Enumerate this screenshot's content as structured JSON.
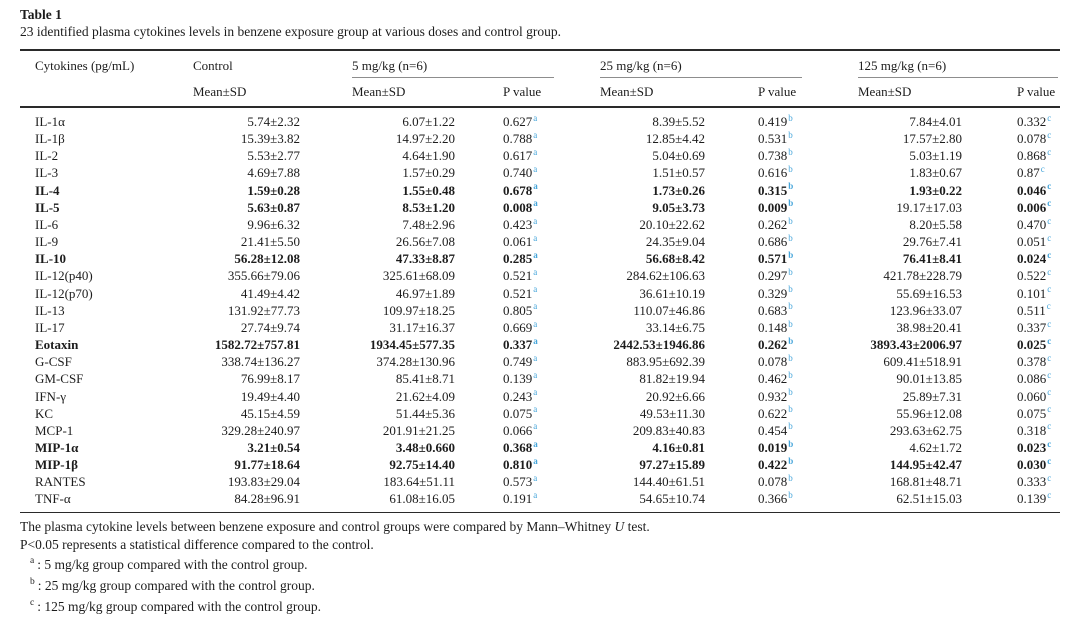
{
  "page": {
    "title": "Table 1",
    "caption": "23 identified plasma cytokines levels in benzene exposure group at various doses and control group."
  },
  "colors": {
    "superscript_blue": "#45a5da",
    "rule_dark": "#2a2a2a",
    "rule_gray": "#8d8d8d"
  },
  "table": {
    "col1_header": "Cytokines (pg/mL)",
    "group_labels": [
      "Control",
      "5 mg/kg (n=6)",
      "25 mg/kg (n=6)",
      "125 mg/kg (n=6)"
    ],
    "mean_sd_label": "Mean±SD",
    "p_value_label": "P value",
    "sup_letters": {
      "p5": "a",
      "p25": "b",
      "p125": "c"
    },
    "rows": [
      {
        "name": "IL-1α",
        "control": "5.74±2.32",
        "mean5": "6.07±1.22",
        "p5": "0.627",
        "mean25": "8.39±5.52",
        "p25": "0.419",
        "mean125": "7.84±4.01",
        "p125": "0.332",
        "bold": []
      },
      {
        "name": "IL-1β",
        "control": "15.39±3.82",
        "mean5": "14.97±2.20",
        "p5": "0.788",
        "mean25": "12.85±4.42",
        "p25": "0.531",
        "mean125": "17.57±2.80",
        "p125": "0.078",
        "bold": []
      },
      {
        "name": "IL-2",
        "control": "5.53±2.77",
        "mean5": "4.64±1.90",
        "p5": "0.617",
        "mean25": "5.04±0.69",
        "p25": "0.738",
        "mean125": "5.03±1.19",
        "p125": "0.868",
        "bold": []
      },
      {
        "name": "IL-3",
        "control": "4.69±7.88",
        "mean5": "1.57±0.29",
        "p5": "0.740",
        "mean25": "1.51±0.57",
        "p25": "0.616",
        "mean125": "1.83±0.67",
        "p125": "0.87",
        "bold": []
      },
      {
        "name": "IL-4",
        "control": "1.59±0.28",
        "mean5": "1.55±0.48",
        "p5": "0.678",
        "mean25": "1.73±0.26",
        "p25": "0.315",
        "mean125": "1.93±0.22",
        "p125": "0.046",
        "bold": [
          "name",
          "control",
          "mean5",
          "p5",
          "mean25",
          "p25",
          "mean125",
          "p125"
        ]
      },
      {
        "name": "IL-5",
        "control": "5.63±0.87",
        "mean5": "8.53±1.20",
        "p5": "0.008",
        "mean25": "9.05±3.73",
        "p25": "0.009",
        "mean125": "19.17±17.03",
        "p125": "0.006",
        "bold": [
          "name",
          "control",
          "mean5",
          "p5",
          "mean25",
          "p25",
          "p125"
        ]
      },
      {
        "name": "IL-6",
        "control": "9.96±6.32",
        "mean5": "7.48±2.96",
        "p5": "0.423",
        "mean25": "20.10±22.62",
        "p25": "0.262",
        "mean125": "8.20±5.58",
        "p125": "0.470",
        "bold": []
      },
      {
        "name": "IL-9",
        "control": "21.41±5.50",
        "mean5": "26.56±7.08",
        "p5": "0.061",
        "mean25": "24.35±9.04",
        "p25": "0.686",
        "mean125": "29.76±7.41",
        "p125": "0.051",
        "bold": []
      },
      {
        "name": "IL-10",
        "control": "56.28±12.08",
        "mean5": "47.33±8.87",
        "p5": "0.285",
        "mean25": "56.68±8.42",
        "p25": "0.571",
        "mean125": "76.41±8.41",
        "p125": "0.024",
        "bold": [
          "name",
          "control",
          "mean5",
          "p5",
          "mean25",
          "p25",
          "mean125",
          "p125"
        ]
      },
      {
        "name": "IL-12(p40)",
        "control": "355.66±79.06",
        "mean5": "325.61±68.09",
        "p5": "0.521",
        "mean25": "284.62±106.63",
        "p25": "0.297",
        "mean125": "421.78±228.79",
        "p125": "0.522",
        "bold": []
      },
      {
        "name": "IL-12(p70)",
        "control": "41.49±4.42",
        "mean5": "46.97±1.89",
        "p5": "0.521",
        "mean25": "36.61±10.19",
        "p25": "0.329",
        "mean125": "55.69±16.53",
        "p125": "0.101",
        "bold": []
      },
      {
        "name": "IL-13",
        "control": "131.92±77.73",
        "mean5": "109.97±18.25",
        "p5": "0.805",
        "mean25": "110.07±46.86",
        "p25": "0.683",
        "mean125": "123.96±33.07",
        "p125": "0.511",
        "bold": []
      },
      {
        "name": "IL-17",
        "control": "27.74±9.74",
        "mean5": "31.17±16.37",
        "p5": "0.669",
        "mean25": "33.14±6.75",
        "p25": "0.148",
        "mean125": "38.98±20.41",
        "p125": "0.337",
        "bold": []
      },
      {
        "name": "Eotaxin",
        "control": "1582.72±757.81",
        "mean5": "1934.45±577.35",
        "p5": "0.337",
        "mean25": "2442.53±1946.86",
        "p25": "0.262",
        "mean125": "3893.43±2006.97",
        "p125": "0.025",
        "bold": [
          "name",
          "control",
          "mean5",
          "p5",
          "mean25",
          "p25",
          "mean125",
          "p125"
        ]
      },
      {
        "name": "G-CSF",
        "control": "338.74±136.27",
        "mean5": "374.28±130.96",
        "p5": "0.749",
        "mean25": "883.95±692.39",
        "p25": "0.078",
        "mean125": "609.41±518.91",
        "p125": "0.378",
        "bold": []
      },
      {
        "name": "GM-CSF",
        "control": "76.99±8.17",
        "mean5": "85.41±8.71",
        "p5": "0.139",
        "mean25": "81.82±19.94",
        "p25": "0.462",
        "mean125": "90.01±13.85",
        "p125": "0.086",
        "bold": []
      },
      {
        "name": "IFN-γ",
        "control": "19.49±4.40",
        "mean5": "21.62±4.09",
        "p5": "0.243",
        "mean25": "20.92±6.66",
        "p25": "0.932",
        "mean125": "25.89±7.31",
        "p125": "0.060",
        "bold": []
      },
      {
        "name": "KC",
        "control": "45.15±4.59",
        "mean5": "51.44±5.36",
        "p5": "0.075",
        "mean25": "49.53±11.30",
        "p25": "0.622",
        "mean125": "55.96±12.08",
        "p125": "0.075",
        "bold": []
      },
      {
        "name": "MCP-1",
        "control": "329.28±240.97",
        "mean5": "201.91±21.25",
        "p5": "0.066",
        "mean25": "209.83±40.83",
        "p25": "0.454",
        "mean125": "293.63±62.75",
        "p125": "0.318",
        "bold": []
      },
      {
        "name": "MIP-1α",
        "control": "3.21±0.54",
        "mean5": "3.48±0.660",
        "p5": "0.368",
        "mean25": "4.16±0.81",
        "p25": "0.019",
        "mean125": "4.62±1.72",
        "p125": "0.023",
        "bold": [
          "name",
          "control",
          "mean5",
          "p5",
          "mean25",
          "p25",
          "p125"
        ]
      },
      {
        "name": "MIP-1β",
        "control": "91.77±18.64",
        "mean5": "92.75±14.40",
        "p5": "0.810",
        "mean25": "97.27±15.89",
        "p25": "0.422",
        "mean125": "144.95±42.47",
        "p125": "0.030",
        "bold": [
          "name",
          "control",
          "mean5",
          "p5",
          "mean25",
          "p25",
          "mean125",
          "p125"
        ]
      },
      {
        "name": "RANTES",
        "control": "193.83±29.04",
        "mean5": "183.64±51.11",
        "p5": "0.573",
        "mean25": "144.40±61.51",
        "p25": "0.078",
        "mean125": "168.81±48.71",
        "p125": "0.333",
        "bold": []
      },
      {
        "name": "TNF-α",
        "control": "84.28±96.91",
        "mean5": "61.08±16.05",
        "p5": "0.191",
        "mean25": "54.65±10.74",
        "p25": "0.366",
        "mean125": "62.51±15.03",
        "p125": "0.139",
        "bold": []
      }
    ]
  },
  "footer": {
    "line1_pre": "The plasma cytokine levels between benzene exposure and control groups were compared by Mann–Whitney ",
    "line1_italic": "U",
    "line1_post": " test.",
    "line2": "P<0.05 represents a statistical difference compared to the control.",
    "notes": [
      {
        "sup": "a",
        "text": ": 5 mg/kg group compared with the control group."
      },
      {
        "sup": "b",
        "text": ": 25 mg/kg group compared with the control group."
      },
      {
        "sup": "c",
        "text": ": 125 mg/kg group compared with the control group."
      }
    ]
  }
}
